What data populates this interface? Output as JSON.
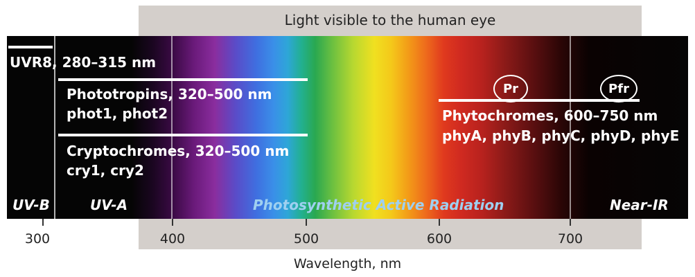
{
  "banner": {
    "text": "Light visible to the human eye"
  },
  "receptors": {
    "uvr8": {
      "label": "UVR8, 280–315 nm"
    },
    "phototropins": {
      "label": "Phototropins, 320–500 nm",
      "members": "phot1, phot2"
    },
    "cryptochromes": {
      "label": "Cryptochromes, 320–500 nm",
      "members": "cry1, cry2"
    },
    "phytochromes": {
      "label": "Phytochromes, 600–750 nm",
      "members": "phyA, phyB, phyC, phyD, phyE",
      "forms": [
        "Pr",
        "Pfr"
      ]
    }
  },
  "regions": {
    "uvb": "UV-B",
    "uva": "UV-A",
    "par": "Photosynthetic Active Radiation",
    "nir": "Near-IR"
  },
  "axis": {
    "ticks": [
      "300",
      "400",
      "500",
      "600",
      "700"
    ],
    "label": "Wavelength, nm"
  },
  "colors": {
    "background_dark": "#0a0a0a",
    "banner_gray": "#d4cfcb",
    "label_white": "#ffffff",
    "par_text_blue": "#9fd0f0"
  }
}
